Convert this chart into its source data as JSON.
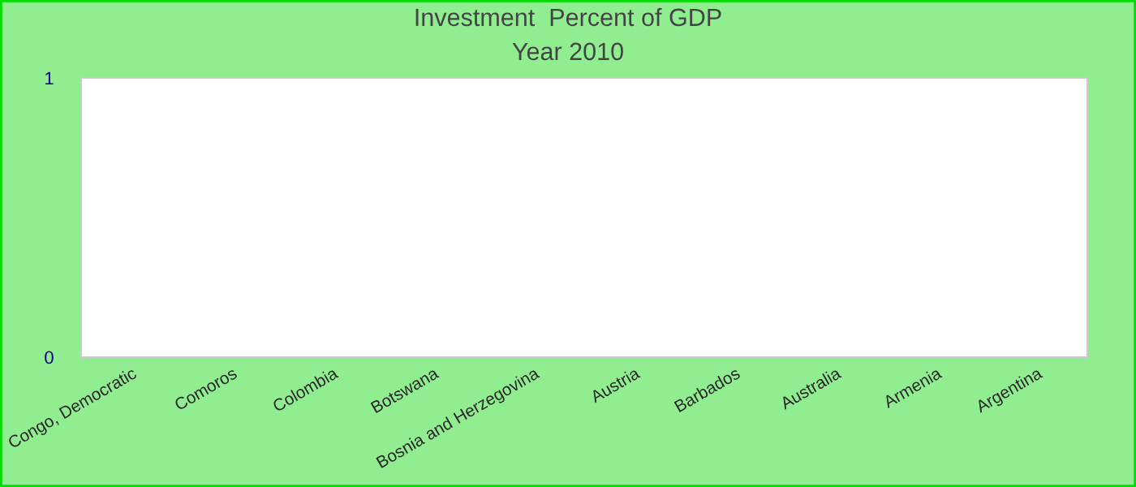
{
  "chart_data": {
    "type": "bar",
    "title": "Investment  Percent of GDP",
    "subtitle": "Year 2010",
    "categories": [
      "Congo, Democratic",
      "Comoros",
      "Colombia",
      "Botswana",
      "Bosnia and Herzegovina",
      "Austria",
      "Barbados",
      "Australia",
      "Armenia",
      "Argentina"
    ],
    "values": [
      null,
      null,
      null,
      null,
      null,
      null,
      null,
      null,
      null,
      null
    ],
    "ylim": [
      0,
      1
    ],
    "yticks": [
      0,
      1
    ],
    "grid": false,
    "legend": false
  }
}
